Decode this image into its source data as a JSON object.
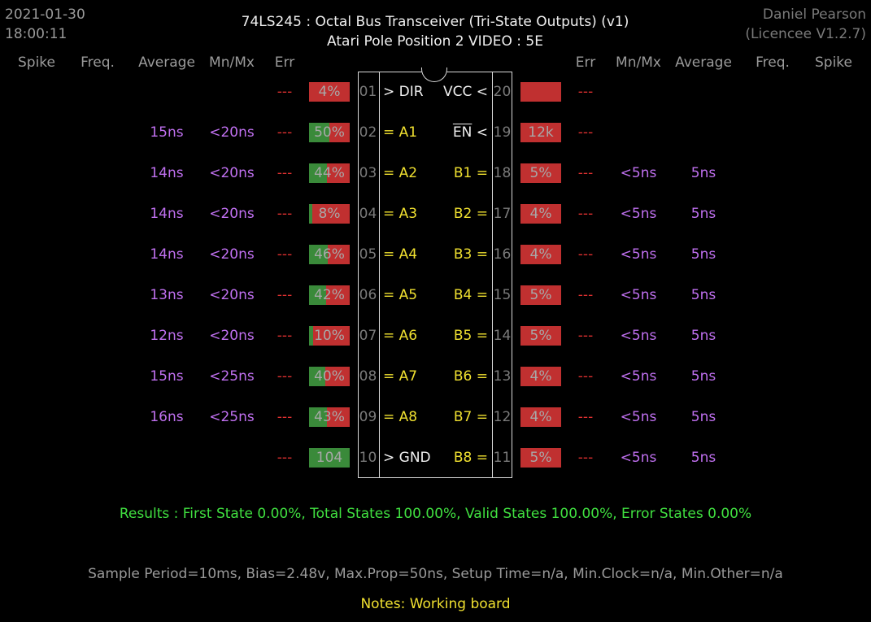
{
  "header": {
    "date": "2021-01-30",
    "time": "18:00:11",
    "title": "74LS245  :  Octal Bus Transceiver (Tri-State Outputs) (v1)",
    "subtitle": "Atari Pole Position 2 VIDEO : 5E",
    "author": "Daniel Pearson",
    "licence": "(Licencee V1.2.7)"
  },
  "columns": {
    "left": [
      "Spike",
      "Freq.",
      "Average",
      "Mn/Mx",
      "Err"
    ],
    "right": [
      "Err",
      "Mn/Mx",
      "Average",
      "Freq.",
      "Spike"
    ]
  },
  "left_pins": [
    {
      "num": "01",
      "label": "> DIR",
      "err": "---",
      "mnmx": "",
      "avg": "",
      "bar": "4%",
      "green_frac": 0.0,
      "label_color": "white"
    },
    {
      "num": "02",
      "label": "= A1",
      "err": "---",
      "mnmx": "<20ns",
      "avg": "15ns",
      "bar": "50%",
      "green_frac": 0.5,
      "label_color": "yellow"
    },
    {
      "num": "03",
      "label": "= A2",
      "err": "---",
      "mnmx": "<20ns",
      "avg": "14ns",
      "bar": "44%",
      "green_frac": 0.44,
      "label_color": "yellow"
    },
    {
      "num": "04",
      "label": "= A3",
      "err": "---",
      "mnmx": "<20ns",
      "avg": "14ns",
      "bar": "8%",
      "green_frac": 0.08,
      "label_color": "yellow"
    },
    {
      "num": "05",
      "label": "= A4",
      "err": "---",
      "mnmx": "<20ns",
      "avg": "14ns",
      "bar": "46%",
      "green_frac": 0.46,
      "label_color": "yellow"
    },
    {
      "num": "06",
      "label": "= A5",
      "err": "---",
      "mnmx": "<20ns",
      "avg": "13ns",
      "bar": "42%",
      "green_frac": 0.42,
      "label_color": "yellow"
    },
    {
      "num": "07",
      "label": "= A6",
      "err": "---",
      "mnmx": "<20ns",
      "avg": "12ns",
      "bar": "10%",
      "green_frac": 0.1,
      "label_color": "yellow"
    },
    {
      "num": "08",
      "label": "= A7",
      "err": "---",
      "mnmx": "<25ns",
      "avg": "15ns",
      "bar": "40%",
      "green_frac": 0.4,
      "label_color": "yellow"
    },
    {
      "num": "09",
      "label": "= A8",
      "err": "---",
      "mnmx": "<25ns",
      "avg": "16ns",
      "bar": "43%",
      "green_frac": 0.43,
      "label_color": "yellow"
    },
    {
      "num": "10",
      "label": "> GND",
      "err": "---",
      "mnmx": "",
      "avg": "",
      "bar": "104",
      "green_frac": 1.0,
      "label_color": "white"
    }
  ],
  "right_pins": [
    {
      "num": "20",
      "label": "VCC <",
      "err": "---",
      "mnmx": "",
      "avg": "",
      "bar": "",
      "green_frac": 0.0,
      "label_color": "white",
      "overline": false
    },
    {
      "num": "19",
      "label": "EN",
      "label_suffix": " <",
      "err": "---",
      "mnmx": "",
      "avg": "",
      "bar": "12k",
      "green_frac": 0.0,
      "label_color": "white",
      "overline": true
    },
    {
      "num": "18",
      "label": "B1 =",
      "err": "---",
      "mnmx": "<5ns",
      "avg": "5ns",
      "bar": "5%",
      "green_frac": 0.0,
      "label_color": "yellow",
      "overline": false
    },
    {
      "num": "17",
      "label": "B2 =",
      "err": "---",
      "mnmx": "<5ns",
      "avg": "5ns",
      "bar": "4%",
      "green_frac": 0.0,
      "label_color": "yellow",
      "overline": false
    },
    {
      "num": "16",
      "label": "B3 =",
      "err": "---",
      "mnmx": "<5ns",
      "avg": "5ns",
      "bar": "4%",
      "green_frac": 0.0,
      "label_color": "yellow",
      "overline": false
    },
    {
      "num": "15",
      "label": "B4 =",
      "err": "---",
      "mnmx": "<5ns",
      "avg": "5ns",
      "bar": "5%",
      "green_frac": 0.0,
      "label_color": "yellow",
      "overline": false
    },
    {
      "num": "14",
      "label": "B5 =",
      "err": "---",
      "mnmx": "<5ns",
      "avg": "5ns",
      "bar": "5%",
      "green_frac": 0.0,
      "label_color": "yellow",
      "overline": false
    },
    {
      "num": "13",
      "label": "B6 =",
      "err": "---",
      "mnmx": "<5ns",
      "avg": "5ns",
      "bar": "4%",
      "green_frac": 0.0,
      "label_color": "yellow",
      "overline": false
    },
    {
      "num": "12",
      "label": "B7 =",
      "err": "---",
      "mnmx": "<5ns",
      "avg": "5ns",
      "bar": "4%",
      "green_frac": 0.0,
      "label_color": "yellow",
      "overline": false
    },
    {
      "num": "11",
      "label": "B8 =",
      "err": "---",
      "mnmx": "<5ns",
      "avg": "5ns",
      "bar": "5%",
      "green_frac": 0.0,
      "label_color": "yellow",
      "overline": false
    }
  ],
  "results": "Results  :  First State 0.00%,  Total States 100.00%,  Valid States 100.00%,  Error States 0.00%",
  "settings": "Sample Period=10ms,  Bias=2.48v,  Max.Prop=50ns,  Setup Time=n/a,  Min.Clock=n/a,  Min.Other=n/a",
  "notes": "Notes:  Working board",
  "colors": {
    "background": "#000000",
    "bar_green": "#3a8a3a",
    "bar_red": "#c03030",
    "avg_purple": "#c070f0",
    "signal_yellow": "#f0e030",
    "results_green": "#40e040"
  }
}
